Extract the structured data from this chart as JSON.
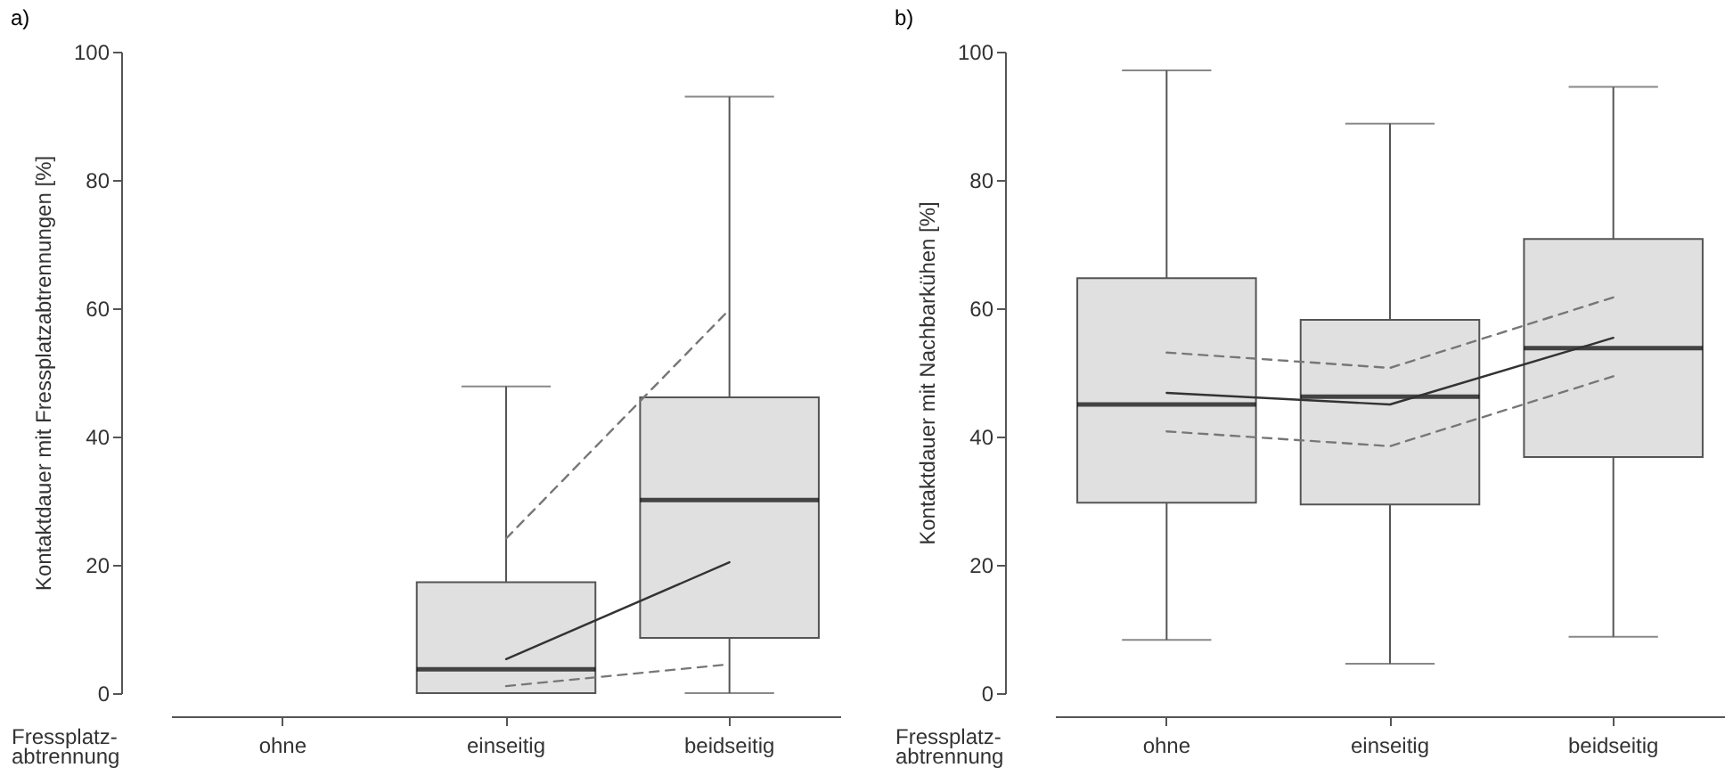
{
  "chart_data": [
    {
      "type": "box",
      "title": "a)",
      "xlabel": "Fressplatz-abtrennung",
      "ylabel": "Kontaktdauer mit Fressplatzabtrennungen [%]",
      "categories": [
        "ohne",
        "einseitig",
        "beidseitig"
      ],
      "ylim": [
        0,
        100
      ],
      "yticks": [
        0,
        20,
        40,
        60,
        80,
        100
      ],
      "series": [
        {
          "color": "#e0e0e0",
          "boxes": [
            null,
            {
              "low": 0,
              "q1": 0,
              "median": 3.7,
              "q3": 17.3,
              "high": 47.8
            },
            {
              "low": 0,
              "q1": 8.6,
              "median": 30.1,
              "q3": 46.1,
              "high": 93
            }
          ]
        },
        {
          "type": "line",
          "color": "#333333",
          "line_style": "solid",
          "values": [
            null,
            5.3,
            20.4
          ]
        },
        {
          "type": "line",
          "color": "#777777",
          "line_style": "dashed",
          "values": [
            null,
            24.1,
            59.8
          ]
        },
        {
          "type": "line",
          "color": "#777777",
          "line_style": "dashed",
          "values": [
            null,
            1.1,
            4.5
          ]
        }
      ]
    },
    {
      "type": "box",
      "title": "b)",
      "xlabel": "Fressplatz-abtrennung",
      "ylabel": "Kontaktdauer mit Nachbarkühen [%]",
      "categories": [
        "ohne",
        "einseitig",
        "beidseitig"
      ],
      "ylim": [
        0,
        100
      ],
      "yticks": [
        0,
        20,
        40,
        60,
        80,
        100
      ],
      "series": [
        {
          "color": "#e0e0e0",
          "boxes": [
            {
              "low": 8.3,
              "q1": 29.7,
              "median": 45,
              "q3": 64.7,
              "high": 97.1
            },
            {
              "low": 4.6,
              "q1": 29.4,
              "median": 46.2,
              "q3": 58.2,
              "high": 88.8
            },
            {
              "low": 8.8,
              "q1": 36.8,
              "median": 53.8,
              "q3": 70.8,
              "high": 94.5
            }
          ]
        },
        {
          "type": "line",
          "color": "#333333",
          "line_style": "solid",
          "values": [
            46.8,
            45,
            55.4
          ]
        },
        {
          "type": "line",
          "color": "#777777",
          "line_style": "dashed",
          "values": [
            53.1,
            50.7,
            61.7
          ]
        },
        {
          "type": "line",
          "color": "#777777",
          "line_style": "dashed",
          "values": [
            40.8,
            38.5,
            49.4
          ]
        }
      ]
    }
  ]
}
